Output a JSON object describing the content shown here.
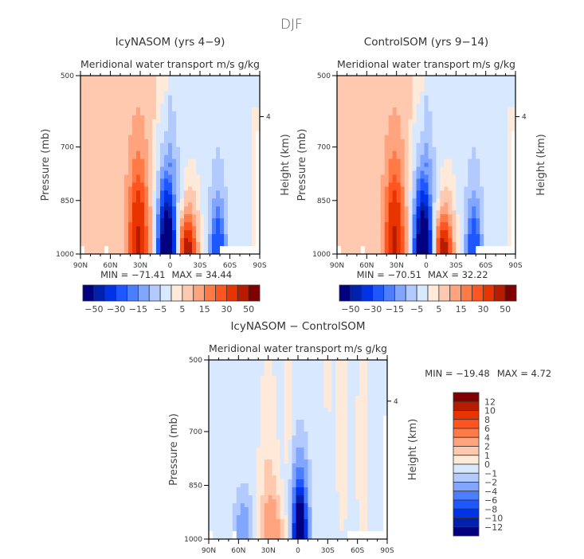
{
  "figure_title": "DJF",
  "palette": [
    "#000080",
    "#0021b0",
    "#0032e6",
    "#1e56ff",
    "#4a7eff",
    "#80a6ff",
    "#b3caff",
    "#d8e8ff",
    "#ffe9d8",
    "#ffc9b0",
    "#ffa47f",
    "#ff7a45",
    "#ff5520",
    "#e83500",
    "#b81c00",
    "#800000"
  ],
  "chart_data": [
    {
      "type": "heatmap",
      "panel": "top-left",
      "title": "IcyNASOM (yrs 4−9)",
      "subtitle_left": "Meridional water transport",
      "subtitle_right": "m/s g/kg",
      "xlabel": "",
      "ylabel": "Pressure (mb)",
      "ylabel_right": "Height (km)",
      "x_ticks": [
        "90N",
        "60N",
        "30N",
        "0",
        "30S",
        "60S",
        "90S"
      ],
      "x_values": [
        90,
        60,
        30,
        0,
        -30,
        -60,
        -90
      ],
      "y_ticks": [
        "500",
        "700",
        "850",
        "1000"
      ],
      "y_values": [
        500,
        700,
        850,
        1000
      ],
      "y_right_ticks": [
        "4"
      ],
      "ylim": [
        1000,
        500
      ],
      "xlim": [
        90,
        -90
      ],
      "min_text": "MIN = −71.41",
      "max_text": "MAX =  34.44",
      "min": -71.41,
      "max": 34.44,
      "features": [
        {
          "lat": 32,
          "p_top": 740,
          "peak": 20,
          "label": "positive cell NH"
        },
        {
          "lat": 3,
          "p_top": 770,
          "peak": -71.41,
          "label": "negative cell equator"
        },
        {
          "lat": -18,
          "p_top": 900,
          "peak": 34.44,
          "label": "positive cell SH"
        },
        {
          "lat": -48,
          "p_top": 780,
          "peak": -20,
          "label": "negative cell SH"
        }
      ],
      "colorbar": {
        "orientation": "horizontal",
        "levels": [
          -50,
          -40,
          -30,
          -20,
          -15,
          -10,
          -5,
          -1,
          1,
          5,
          10,
          15,
          20,
          30,
          40,
          50
        ],
        "labels": [
          "−50",
          "−30",
          "−15",
          "−5",
          "5",
          "15",
          "30",
          "50"
        ]
      }
    },
    {
      "type": "heatmap",
      "panel": "top-right",
      "title": "ControlSOM (yrs 9−14)",
      "subtitle_left": "Meridional water transport",
      "subtitle_right": "m/s g/kg",
      "ylabel": "Pressure (mb)",
      "ylabel_right": "Height (km)",
      "x_ticks": [
        "90N",
        "60N",
        "30N",
        "0",
        "30S",
        "60S",
        "90S"
      ],
      "y_ticks": [
        "500",
        "700",
        "850",
        "1000"
      ],
      "y_right_ticks": [
        "4"
      ],
      "ylim": [
        1000,
        500
      ],
      "xlim": [
        90,
        -90
      ],
      "min_text": "MIN = −70.51",
      "max_text": "MAX =  32.22",
      "min": -70.51,
      "max": 32.22,
      "colorbar": {
        "orientation": "horizontal",
        "labels": [
          "−50",
          "−30",
          "−15",
          "−5",
          "5",
          "15",
          "30",
          "50"
        ]
      }
    },
    {
      "type": "heatmap",
      "panel": "bottom",
      "title": "IcyNASOM − ControlSOM",
      "subtitle_left": "Meridional water transport",
      "subtitle_right": "m/s g/kg",
      "ylabel": "Pressure (mb)",
      "ylabel_right": "Height (km)",
      "x_ticks": [
        "90N",
        "60N",
        "30N",
        "0",
        "30S",
        "60S",
        "90S"
      ],
      "y_ticks": [
        "500",
        "700",
        "850",
        "1000"
      ],
      "y_right_ticks": [
        "4"
      ],
      "ylim": [
        1000,
        500
      ],
      "xlim": [
        90,
        -90
      ],
      "min_text": "MIN = −19.48",
      "max_text": "MAX =    4.72",
      "min": -19.48,
      "max": 4.72,
      "colorbar": {
        "orientation": "vertical",
        "labels": [
          "12",
          "10",
          "8",
          "6",
          "4",
          "2",
          "1",
          "0",
          "−1",
          "−2",
          "−4",
          "−6",
          "−8",
          "−10",
          "−12"
        ]
      }
    }
  ]
}
